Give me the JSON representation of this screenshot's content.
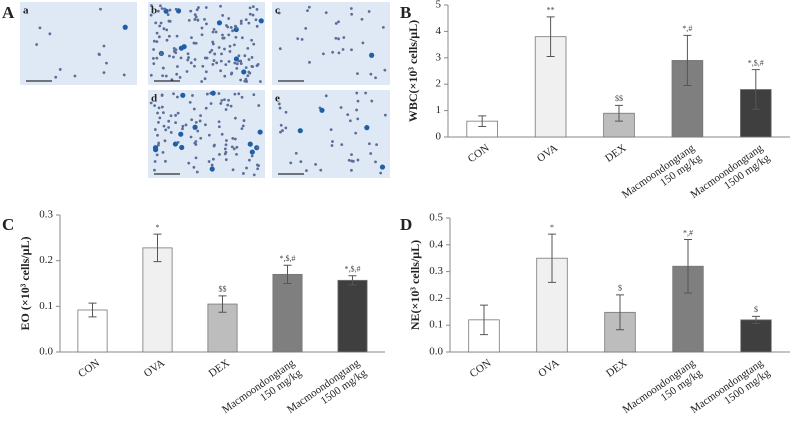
{
  "micrographs": {
    "panel_label": "A",
    "images": [
      "a",
      "b",
      "c",
      "d",
      "e"
    ]
  },
  "chart_data": [
    {
      "type": "bar",
      "panel_label": "B",
      "y_label": "WBC(×10³ cells/μL)",
      "categories": [
        [
          "CON"
        ],
        [
          "OVA"
        ],
        [
          "DEX"
        ],
        [
          "Macmoondongtang",
          "150 mg/kg"
        ],
        [
          "Macmoondongtang",
          "1500 mg/kg"
        ]
      ],
      "values": [
        0.6,
        3.8,
        0.9,
        2.9,
        1.8
      ],
      "errors": [
        0.2,
        0.75,
        0.3,
        0.95,
        0.75
      ],
      "annotations": [
        null,
        "**",
        "$$",
        "*,#",
        "*,$,#"
      ],
      "colors": [
        "#ffffff",
        "#f0f0f0",
        "#bdbdbd",
        "#7f7f7f",
        "#3f3f3f"
      ],
      "ylim": [
        0,
        5
      ],
      "yticks": [
        0,
        1,
        2,
        3,
        4,
        5
      ]
    },
    {
      "type": "bar",
      "panel_label": "C",
      "y_label": "EO (×10³ cells/μL)",
      "categories": [
        [
          "CON"
        ],
        [
          "OVA"
        ],
        [
          "DEX"
        ],
        [
          "Macmoondongtang",
          "150 mg/kg"
        ],
        [
          "Macmoondongtang",
          "1500 mg/kg"
        ]
      ],
      "values": [
        0.092,
        0.228,
        0.105,
        0.17,
        0.157
      ],
      "errors": [
        0.015,
        0.03,
        0.018,
        0.02,
        0.01
      ],
      "annotations": [
        null,
        "*",
        "$$",
        "*,$,#",
        "*,$,#"
      ],
      "colors": [
        "#ffffff",
        "#f0f0f0",
        "#bdbdbd",
        "#7f7f7f",
        "#3f3f3f"
      ],
      "ylim": [
        0,
        0.3
      ],
      "yticks": [
        {
          "value": 0,
          "label": "0.0"
        },
        0.1,
        0.2,
        0.3
      ]
    },
    {
      "type": "bar",
      "panel_label": "D",
      "y_label": "NE(×10³ cells/μL)",
      "categories": [
        [
          "CON"
        ],
        [
          "OVA"
        ],
        [
          "DEX"
        ],
        [
          "Macmoondongtang",
          "150 mg/kg"
        ],
        [
          "Macmoondongtang",
          "1500 mg/kg"
        ]
      ],
      "values": [
        0.12,
        0.35,
        0.148,
        0.32,
        0.12
      ],
      "errors": [
        0.055,
        0.09,
        0.065,
        0.1,
        0.013
      ],
      "annotations": [
        null,
        "*",
        "$",
        "*,#",
        "$"
      ],
      "colors": [
        "#ffffff",
        "#f0f0f0",
        "#bdbdbd",
        "#7f7f7f",
        "#3f3f3f"
      ],
      "ylim": [
        0,
        0.5
      ],
      "yticks": [
        {
          "value": 0,
          "label": "0.0"
        },
        0.1,
        0.2,
        0.3,
        0.4,
        0.5
      ]
    }
  ]
}
